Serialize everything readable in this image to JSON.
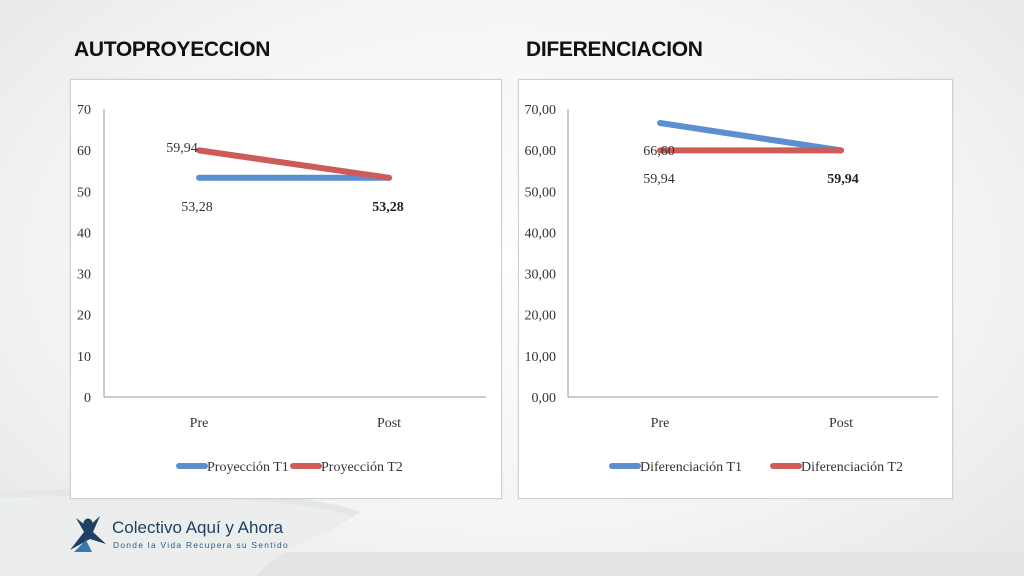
{
  "titles": {
    "left": "AUTOPROYECCION",
    "right": "DIFERENCIACION"
  },
  "colors": {
    "series1": "#5b8fd0",
    "series2": "#cd5c59",
    "axis": "#9a9a9a",
    "logo_primary": "#1f3f63"
  },
  "chart_data": [
    {
      "type": "line",
      "title": "AUTOPROYECCION",
      "categories": [
        "Pre",
        "Post"
      ],
      "series": [
        {
          "name": "Proyección T1",
          "values": [
            53.28,
            53.28
          ]
        },
        {
          "name": "Proyección T2",
          "values": [
            59.94,
            53.28
          ]
        }
      ],
      "ylim": [
        0,
        70
      ],
      "yticks": [
        "0",
        "10",
        "20",
        "30",
        "40",
        "50",
        "60",
        "70"
      ],
      "data_labels": [
        "59,94",
        "53,28",
        "53,28"
      ],
      "legend": "bottom",
      "grid": false
    },
    {
      "type": "line",
      "title": "DIFERENCIACION",
      "categories": [
        "Pre",
        "Post"
      ],
      "series": [
        {
          "name": "Diferenciación T1",
          "values": [
            66.6,
            59.94
          ]
        },
        {
          "name": "Diferenciación T2",
          "values": [
            59.94,
            59.94
          ]
        }
      ],
      "ylim": [
        0,
        70
      ],
      "yticks": [
        "0,00",
        "10,00",
        "20,00",
        "30,00",
        "40,00",
        "50,00",
        "60,00",
        "70,00"
      ],
      "data_labels": [
        "66,60",
        "59,94",
        "59,94"
      ],
      "legend": "bottom",
      "grid": false
    }
  ],
  "logo": {
    "name": "Colectivo Aquí y Ahora",
    "tagline": "Donde la Vida Recupera su Sentido",
    "icon": "person-star-icon"
  }
}
